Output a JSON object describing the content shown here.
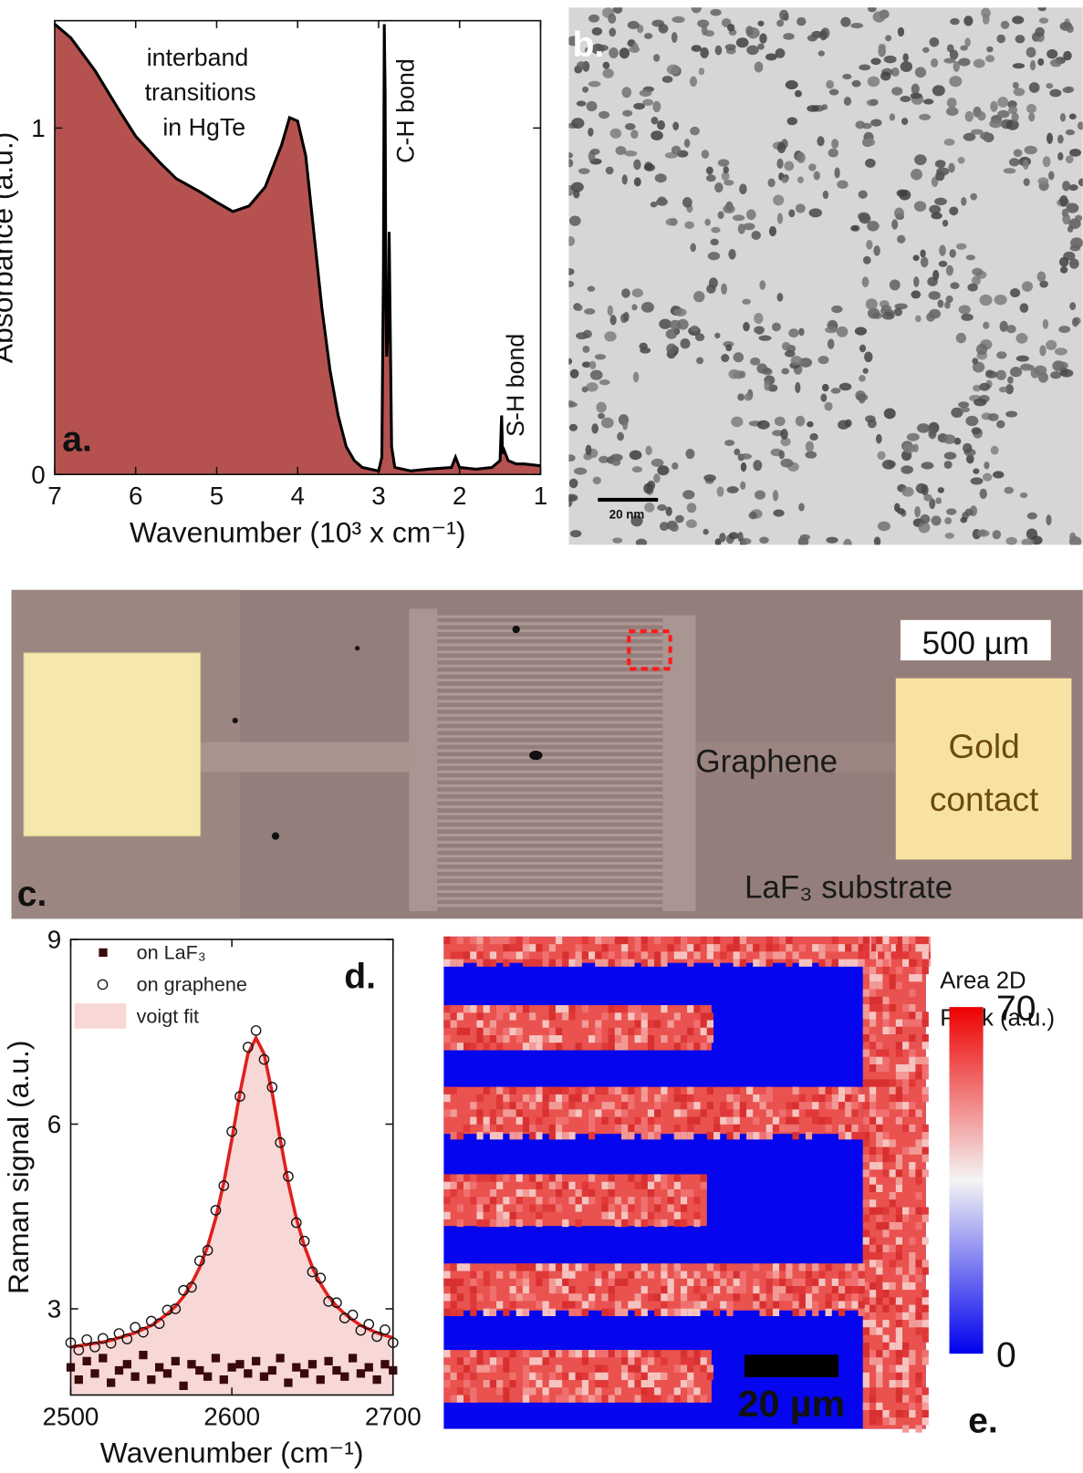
{
  "chart_data": [
    {
      "type": "area",
      "xlabel": "Wavenumber (10³ x cm⁻¹)",
      "ylabel": "Absorbance (a.u.)",
      "xlim": [
        7,
        1
      ],
      "xticks": [
        7,
        6,
        5,
        4,
        3,
        2,
        1
      ],
      "ylim": [
        0,
        1.31
      ],
      "yticks": [
        0,
        1
      ],
      "annotations": {
        "interband": [
          "interband",
          "transitions",
          "in HgTe"
        ],
        "ch_bond": "C-H bond",
        "sh_bond": "S-H bond",
        "panel": "a."
      },
      "series": [
        {
          "color": "#b5524f",
          "line_color": "#000000",
          "x": [
            7,
            6.8,
            6.5,
            6.2,
            6,
            5.7,
            5.5,
            5.2,
            5,
            4.8,
            4.6,
            4.4,
            4.2,
            4.1,
            4.0,
            3.9,
            3.8,
            3.7,
            3.6,
            3.5,
            3.4,
            3.3,
            3.2,
            3.0,
            2.96,
            2.94,
            2.93,
            2.92,
            2.91,
            2.9,
            2.88,
            2.87,
            2.86,
            2.84,
            2.8,
            2.6,
            2.4,
            2.1,
            2.05,
            2.0,
            1.8,
            1.6,
            1.5,
            1.48,
            1.47,
            1.45,
            1.4,
            1.3,
            1.2,
            1.0
          ],
          "values": [
            1.3,
            1.26,
            1.165,
            1.05,
            0.976,
            0.9,
            0.854,
            0.815,
            0.786,
            0.759,
            0.775,
            0.83,
            0.95,
            1.03,
            1.02,
            0.92,
            0.7,
            0.48,
            0.3,
            0.17,
            0.08,
            0.04,
            0.02,
            0.01,
            0.05,
            0.6,
            1.3,
            1.1,
            0.5,
            0.34,
            0.45,
            0.7,
            0.5,
            0.08,
            0.02,
            0.01,
            0.015,
            0.02,
            0.05,
            0.02,
            0.015,
            0.02,
            0.04,
            0.17,
            0.06,
            0.07,
            0.04,
            0.03,
            0.03,
            0.025
          ]
        }
      ]
    },
    {
      "type": "scatter",
      "xlabel": "Wavenumber (cm⁻¹)",
      "ylabel": "Raman signal (a.u.)",
      "xlim": [
        2500,
        2700
      ],
      "xticks": [
        2500,
        2600,
        2700
      ],
      "ylim": [
        1.6,
        9
      ],
      "yticks": [
        3,
        6,
        9
      ],
      "legend": "upper left",
      "annotations": {
        "panel": "d."
      },
      "x": [
        2500,
        2505,
        2510,
        2515,
        2520,
        2525,
        2530,
        2535,
        2540,
        2545,
        2550,
        2555,
        2560,
        2565,
        2570,
        2575,
        2580,
        2585,
        2590,
        2595,
        2600,
        2605,
        2610,
        2615,
        2620,
        2625,
        2630,
        2635,
        2640,
        2645,
        2650,
        2655,
        2660,
        2665,
        2670,
        2675,
        2680,
        2685,
        2690,
        2695,
        2700
      ],
      "series": [
        {
          "name": "on LaF₃",
          "marker": "square",
          "color": "#3a0a0a",
          "values": [
            2.05,
            1.85,
            2.15,
            1.95,
            2.2,
            1.8,
            2.0,
            2.1,
            1.9,
            2.25,
            1.85,
            2.05,
            1.95,
            2.15,
            1.75,
            2.1,
            2.0,
            1.9,
            2.2,
            1.85,
            2.05,
            2.1,
            1.95,
            2.15,
            1.9,
            2.0,
            2.2,
            1.8,
            2.05,
            1.95,
            2.1,
            1.85,
            2.15,
            2.0,
            1.9,
            2.2,
            1.95,
            2.05,
            1.85,
            2.1,
            2.0
          ]
        },
        {
          "name": "on graphene",
          "marker": "circle",
          "color": "#111111",
          "values": [
            2.45,
            2.33,
            2.5,
            2.38,
            2.52,
            2.44,
            2.6,
            2.51,
            2.7,
            2.62,
            2.8,
            2.76,
            2.98,
            3.0,
            3.3,
            3.35,
            3.78,
            3.95,
            4.6,
            5.0,
            5.88,
            6.45,
            7.25,
            7.52,
            7.05,
            6.6,
            5.7,
            5.15,
            4.4,
            4.1,
            3.6,
            3.5,
            3.12,
            3.1,
            2.85,
            2.9,
            2.65,
            2.75,
            2.55,
            2.66,
            2.45
          ]
        },
        {
          "name": "voigt fit",
          "marker": "area",
          "color": "#e0201e",
          "fill": "#f7d8d6",
          "values": [
            2.38,
            2.4,
            2.42,
            2.44,
            2.46,
            2.49,
            2.53,
            2.57,
            2.61,
            2.67,
            2.73,
            2.82,
            2.92,
            3.04,
            3.2,
            3.41,
            3.67,
            4.02,
            4.47,
            5.05,
            5.75,
            6.51,
            7.14,
            7.4,
            7.14,
            6.51,
            5.75,
            5.05,
            4.47,
            4.02,
            3.67,
            3.41,
            3.2,
            3.04,
            2.92,
            2.82,
            2.73,
            2.67,
            2.61,
            2.57,
            2.53
          ]
        }
      ]
    }
  ],
  "images": {
    "b": {
      "panel": "b.",
      "scale_bar": "20 nm"
    },
    "c": {
      "panel": "c.",
      "scale_bar": "500 µm",
      "graphene": "Graphene",
      "gold_contact": [
        "Gold",
        "contact"
      ],
      "substrate": "LaF₃ substrate"
    },
    "e": {
      "panel": "e.",
      "scale_bar": "20 µm",
      "colorbar_title": [
        "Area 2D",
        "Peak (a.u.)"
      ],
      "colorbar_ticks": [
        0,
        70
      ]
    }
  }
}
